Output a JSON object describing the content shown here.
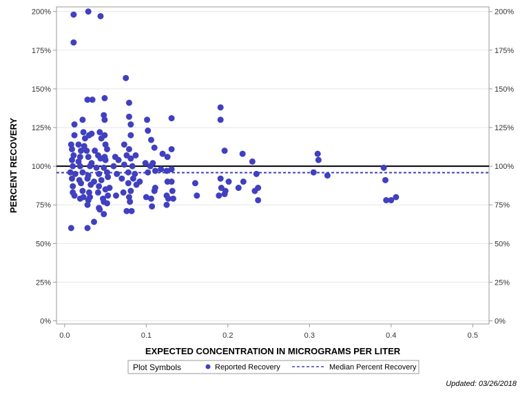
{
  "chart_data": {
    "type": "scatter",
    "title": "",
    "xlabel": "EXPECTED CONCENTRATION IN MICROGRAMS PER LITER",
    "ylabel": "PERCENT RECOVERY",
    "xlim": [
      -0.01,
      0.52
    ],
    "ylim": [
      -2,
      203
    ],
    "x_ticks": [
      0,
      0.1,
      0.2,
      0.3,
      0.4,
      0.5
    ],
    "x_tick_labels": [
      "0.0",
      "0.1",
      "0.2",
      "0.3",
      "0.4",
      "0.5"
    ],
    "y_ticks": [
      0,
      25,
      50,
      75,
      100,
      125,
      150,
      175,
      200
    ],
    "y_tick_labels": [
      "0%",
      "25%",
      "50%",
      "75%",
      "100%",
      "125%",
      "150%",
      "175%",
      "200%"
    ],
    "grid": true,
    "reference_line": {
      "y": 100,
      "color": "#000000"
    },
    "median_line": {
      "name": "Median Percent Recovery",
      "y": 95.8,
      "color": "#3d3dbd",
      "style": "dashed"
    },
    "series": [
      {
        "name": "Reported Recovery",
        "color": "#4040c0",
        "points": [
          [
            0.011,
            198
          ],
          [
            0.029,
            200
          ],
          [
            0.044,
            197
          ],
          [
            0.011,
            180
          ],
          [
            0.075,
            157
          ],
          [
            0.049,
            144
          ],
          [
            0.028,
            143
          ],
          [
            0.034,
            143
          ],
          [
            0.079,
            141
          ],
          [
            0.191,
            138
          ],
          [
            0.048,
            133
          ],
          [
            0.079,
            132
          ],
          [
            0.022,
            130
          ],
          [
            0.049,
            130
          ],
          [
            0.101,
            130
          ],
          [
            0.131,
            131
          ],
          [
            0.191,
            130
          ],
          [
            0.012,
            127
          ],
          [
            0.081,
            127
          ],
          [
            0.023,
            122
          ],
          [
            0.03,
            120
          ],
          [
            0.043,
            122
          ],
          [
            0.102,
            123
          ],
          [
            0.012,
            120
          ],
          [
            0.025,
            118
          ],
          [
            0.033,
            121
          ],
          [
            0.045,
            118
          ],
          [
            0.049,
            120
          ],
          [
            0.081,
            120
          ],
          [
            0.106,
            117
          ],
          [
            0.008,
            114
          ],
          [
            0.017,
            114
          ],
          [
            0.024,
            113
          ],
          [
            0.05,
            114
          ],
          [
            0.073,
            114
          ],
          [
            0.009,
            111
          ],
          [
            0.02,
            110
          ],
          [
            0.027,
            110
          ],
          [
            0.037,
            110
          ],
          [
            0.052,
            111
          ],
          [
            0.079,
            111
          ],
          [
            0.11,
            112
          ],
          [
            0.131,
            111
          ],
          [
            0.196,
            110
          ],
          [
            0.011,
            107
          ],
          [
            0.019,
            106
          ],
          [
            0.029,
            106
          ],
          [
            0.041,
            107
          ],
          [
            0.049,
            106
          ],
          [
            0.062,
            106
          ],
          [
            0.076,
            107
          ],
          [
            0.087,
            107
          ],
          [
            0.12,
            108
          ],
          [
            0.218,
            108
          ],
          [
            0.31,
            108
          ],
          [
            0.009,
            104
          ],
          [
            0.017,
            103
          ],
          [
            0.033,
            102
          ],
          [
            0.044,
            105
          ],
          [
            0.05,
            104
          ],
          [
            0.066,
            104
          ],
          [
            0.081,
            105
          ],
          [
            0.099,
            102
          ],
          [
            0.108,
            102
          ],
          [
            0.126,
            106
          ],
          [
            0.23,
            103
          ],
          [
            0.311,
            104
          ],
          [
            0.01,
            100
          ],
          [
            0.019,
            100
          ],
          [
            0.031,
            100
          ],
          [
            0.039,
            99
          ],
          [
            0.048,
            99
          ],
          [
            0.06,
            100
          ],
          [
            0.073,
            101
          ],
          [
            0.083,
            100
          ],
          [
            0.105,
            100
          ],
          [
            0.118,
            98
          ],
          [
            0.131,
            98
          ],
          [
            0.391,
            99
          ],
          [
            0.007,
            96
          ],
          [
            0.013,
            95
          ],
          [
            0.022,
            96
          ],
          [
            0.029,
            94
          ],
          [
            0.042,
            95
          ],
          [
            0.052,
            96
          ],
          [
            0.064,
            95
          ],
          [
            0.078,
            96
          ],
          [
            0.086,
            95
          ],
          [
            0.102,
            96
          ],
          [
            0.111,
            97
          ],
          [
            0.125,
            97
          ],
          [
            0.235,
            95
          ],
          [
            0.305,
            96
          ],
          [
            0.322,
            94
          ],
          [
            0.009,
            92
          ],
          [
            0.018,
            91
          ],
          [
            0.028,
            92
          ],
          [
            0.036,
            90
          ],
          [
            0.045,
            91
          ],
          [
            0.053,
            93
          ],
          [
            0.07,
            92
          ],
          [
            0.084,
            92
          ],
          [
            0.092,
            90
          ],
          [
            0.126,
            90
          ],
          [
            0.131,
            90
          ],
          [
            0.191,
            92
          ],
          [
            0.201,
            90
          ],
          [
            0.219,
            90
          ],
          [
            0.393,
            91
          ],
          [
            0.01,
            87
          ],
          [
            0.02,
            89
          ],
          [
            0.032,
            88
          ],
          [
            0.042,
            87
          ],
          [
            0.055,
            86
          ],
          [
            0.078,
            89
          ],
          [
            0.088,
            88
          ],
          [
            0.111,
            86
          ],
          [
            0.16,
            89
          ],
          [
            0.192,
            86
          ],
          [
            0.213,
            86
          ],
          [
            0.237,
            86
          ],
          [
            0.01,
            83
          ],
          [
            0.022,
            84
          ],
          [
            0.03,
            83
          ],
          [
            0.041,
            83
          ],
          [
            0.05,
            85
          ],
          [
            0.063,
            81
          ],
          [
            0.072,
            83
          ],
          [
            0.081,
            84
          ],
          [
            0.11,
            84
          ],
          [
            0.132,
            84
          ],
          [
            0.197,
            84
          ],
          [
            0.233,
            84
          ],
          [
            0.012,
            81
          ],
          [
            0.023,
            80
          ],
          [
            0.031,
            80
          ],
          [
            0.047,
            79
          ],
          [
            0.053,
            81
          ],
          [
            0.079,
            80
          ],
          [
            0.1,
            80
          ],
          [
            0.125,
            81
          ],
          [
            0.162,
            81
          ],
          [
            0.189,
            81
          ],
          [
            0.196,
            82
          ],
          [
            0.019,
            79
          ],
          [
            0.029,
            78
          ],
          [
            0.048,
            77
          ],
          [
            0.08,
            77
          ],
          [
            0.106,
            79
          ],
          [
            0.127,
            79
          ],
          [
            0.133,
            79
          ],
          [
            0.237,
            78
          ],
          [
            0.394,
            78
          ],
          [
            0.4,
            78
          ],
          [
            0.406,
            80
          ],
          [
            0.028,
            75
          ],
          [
            0.042,
            73
          ],
          [
            0.052,
            76
          ],
          [
            0.107,
            74
          ],
          [
            0.125,
            75
          ],
          [
            0.043,
            72
          ],
          [
            0.076,
            71
          ],
          [
            0.082,
            71
          ],
          [
            0.048,
            69
          ],
          [
            0.036,
            64
          ],
          [
            0.008,
            60
          ],
          [
            0.028,
            60
          ]
        ]
      }
    ],
    "legend": {
      "title": "Plot Symbols",
      "placement": "bottom",
      "items": [
        {
          "label": "Reported Recovery",
          "kind": "marker"
        },
        {
          "label": "Median Percent Recovery",
          "kind": "dashed-line"
        }
      ]
    },
    "footnote": "Updated: 03/26/2018"
  }
}
